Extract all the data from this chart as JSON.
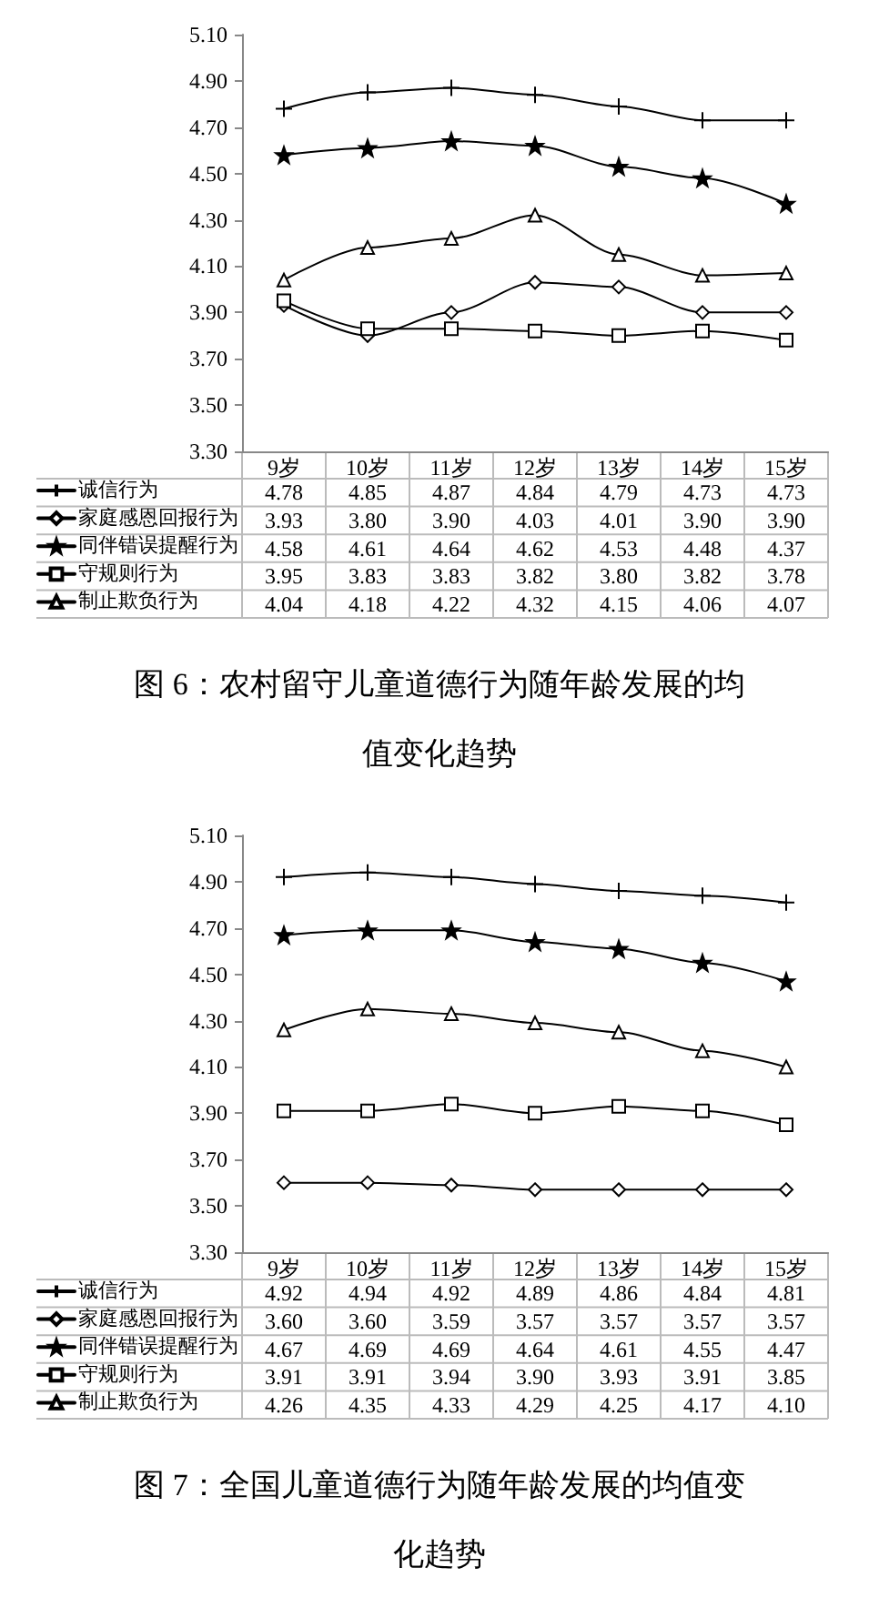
{
  "chart_data": [
    {
      "type": "line",
      "title": "图 6：农村留守儿童道德行为随年龄发展的均值变化趋势",
      "categories": [
        "9岁",
        "10岁",
        "11岁",
        "12岁",
        "13岁",
        "14岁",
        "15岁"
      ],
      "series": [
        {
          "name": "诚信行为",
          "color": "#000000",
          "marker": "cross",
          "values": [
            4.78,
            4.85,
            4.87,
            4.84,
            4.79,
            4.73,
            4.73
          ],
          "value_labels": [
            "4.78",
            "4.85",
            "4.87",
            "4.84",
            "4.79",
            "4.73",
            "4.73"
          ]
        },
        {
          "name": "家庭感恩回报行为",
          "color": "#000000",
          "marker": "diamond",
          "values": [
            3.93,
            3.8,
            3.9,
            4.03,
            4.01,
            3.9,
            3.9
          ],
          "value_labels": [
            "3.93",
            "3.80",
            "3.90",
            "4.03",
            "4.01",
            "3.90",
            "3.90"
          ]
        },
        {
          "name": "同伴错误提醒行为",
          "color": "#000000",
          "marker": "star",
          "values": [
            4.58,
            4.61,
            4.64,
            4.62,
            4.53,
            4.48,
            4.37
          ],
          "value_labels": [
            "4.58",
            "4.61",
            "4.64",
            "4.62",
            "4.53",
            "4.48",
            "4.37"
          ]
        },
        {
          "name": "守规则行为",
          "color": "#000000",
          "marker": "square",
          "values": [
            3.95,
            3.83,
            3.83,
            3.82,
            3.8,
            3.82,
            3.78
          ],
          "value_labels": [
            "3.95",
            "3.83",
            "3.83",
            "3.82",
            "3.80",
            "3.82",
            "3.78"
          ]
        },
        {
          "name": "制止欺负行为",
          "color": "#000000",
          "marker": "triangle",
          "values": [
            4.04,
            4.18,
            4.22,
            4.32,
            4.15,
            4.06,
            4.07
          ],
          "value_labels": [
            "4.04",
            "4.18",
            "4.22",
            "4.32",
            "4.15",
            "4.06",
            "4.07"
          ]
        }
      ],
      "ylim": [
        3.3,
        5.1
      ],
      "yticks": [
        {
          "value": 3.3,
          "label": "3.30"
        },
        {
          "value": 3.5,
          "label": "3.50"
        },
        {
          "value": 3.7,
          "label": "3.70"
        },
        {
          "value": 3.9,
          "label": "3.90"
        },
        {
          "value": 4.1,
          "label": "4.10"
        },
        {
          "value": 4.3,
          "label": "4.30"
        },
        {
          "value": 4.5,
          "label": "4.50"
        },
        {
          "value": 4.7,
          "label": "4.70"
        },
        {
          "value": 4.9,
          "label": "4.90"
        },
        {
          "value": 5.1,
          "label": "5.10"
        }
      ],
      "grid": false,
      "legend": "bottom left"
    },
    {
      "type": "line",
      "title": "图 7：全国儿童道德行为随年龄发展的均值变化趋势",
      "categories": [
        "9岁",
        "10岁",
        "11岁",
        "12岁",
        "13岁",
        "14岁",
        "15岁"
      ],
      "series": [
        {
          "name": "诚信行为",
          "color": "#000000",
          "marker": "cross",
          "values": [
            4.92,
            4.94,
            4.92,
            4.89,
            4.86,
            4.84,
            4.81
          ],
          "value_labels": [
            "4.92",
            "4.94",
            "4.92",
            "4.89",
            "4.86",
            "4.84",
            "4.81"
          ]
        },
        {
          "name": "家庭感恩回报行为",
          "color": "#000000",
          "marker": "diamond",
          "values": [
            3.6,
            3.6,
            3.59,
            3.57,
            3.57,
            3.57,
            3.57
          ],
          "value_labels": [
            "3.60",
            "3.60",
            "3.59",
            "3.57",
            "3.57",
            "3.57",
            "3.57"
          ]
        },
        {
          "name": "同伴错误提醒行为",
          "color": "#000000",
          "marker": "star",
          "values": [
            4.67,
            4.69,
            4.69,
            4.64,
            4.61,
            4.55,
            4.47
          ],
          "value_labels": [
            "4.67",
            "4.69",
            "4.69",
            "4.64",
            "4.61",
            "4.55",
            "4.47"
          ]
        },
        {
          "name": "守规则行为",
          "color": "#000000",
          "marker": "square",
          "values": [
            3.91,
            3.91,
            3.94,
            3.9,
            3.93,
            3.91,
            3.85
          ],
          "value_labels": [
            "3.91",
            "3.91",
            "3.94",
            "3.90",
            "3.93",
            "3.91",
            "3.85"
          ]
        },
        {
          "name": "制止欺负行为",
          "color": "#000000",
          "marker": "triangle",
          "values": [
            4.26,
            4.35,
            4.33,
            4.29,
            4.25,
            4.17,
            4.1
          ],
          "value_labels": [
            "4.26",
            "4.35",
            "4.33",
            "4.29",
            "4.25",
            "4.17",
            "4.10"
          ]
        }
      ],
      "ylim": [
        3.3,
        5.1
      ],
      "yticks": [
        {
          "value": 3.3,
          "label": "3.30"
        },
        {
          "value": 3.5,
          "label": "3.50"
        },
        {
          "value": 3.7,
          "label": "3.70"
        },
        {
          "value": 3.9,
          "label": "3.90"
        },
        {
          "value": 4.1,
          "label": "4.10"
        },
        {
          "value": 4.3,
          "label": "4.30"
        },
        {
          "value": 4.5,
          "label": "4.50"
        },
        {
          "value": 4.7,
          "label": "4.70"
        },
        {
          "value": 4.9,
          "label": "4.90"
        },
        {
          "value": 5.1,
          "label": "5.10"
        }
      ],
      "grid": false,
      "legend": "bottom left"
    }
  ]
}
